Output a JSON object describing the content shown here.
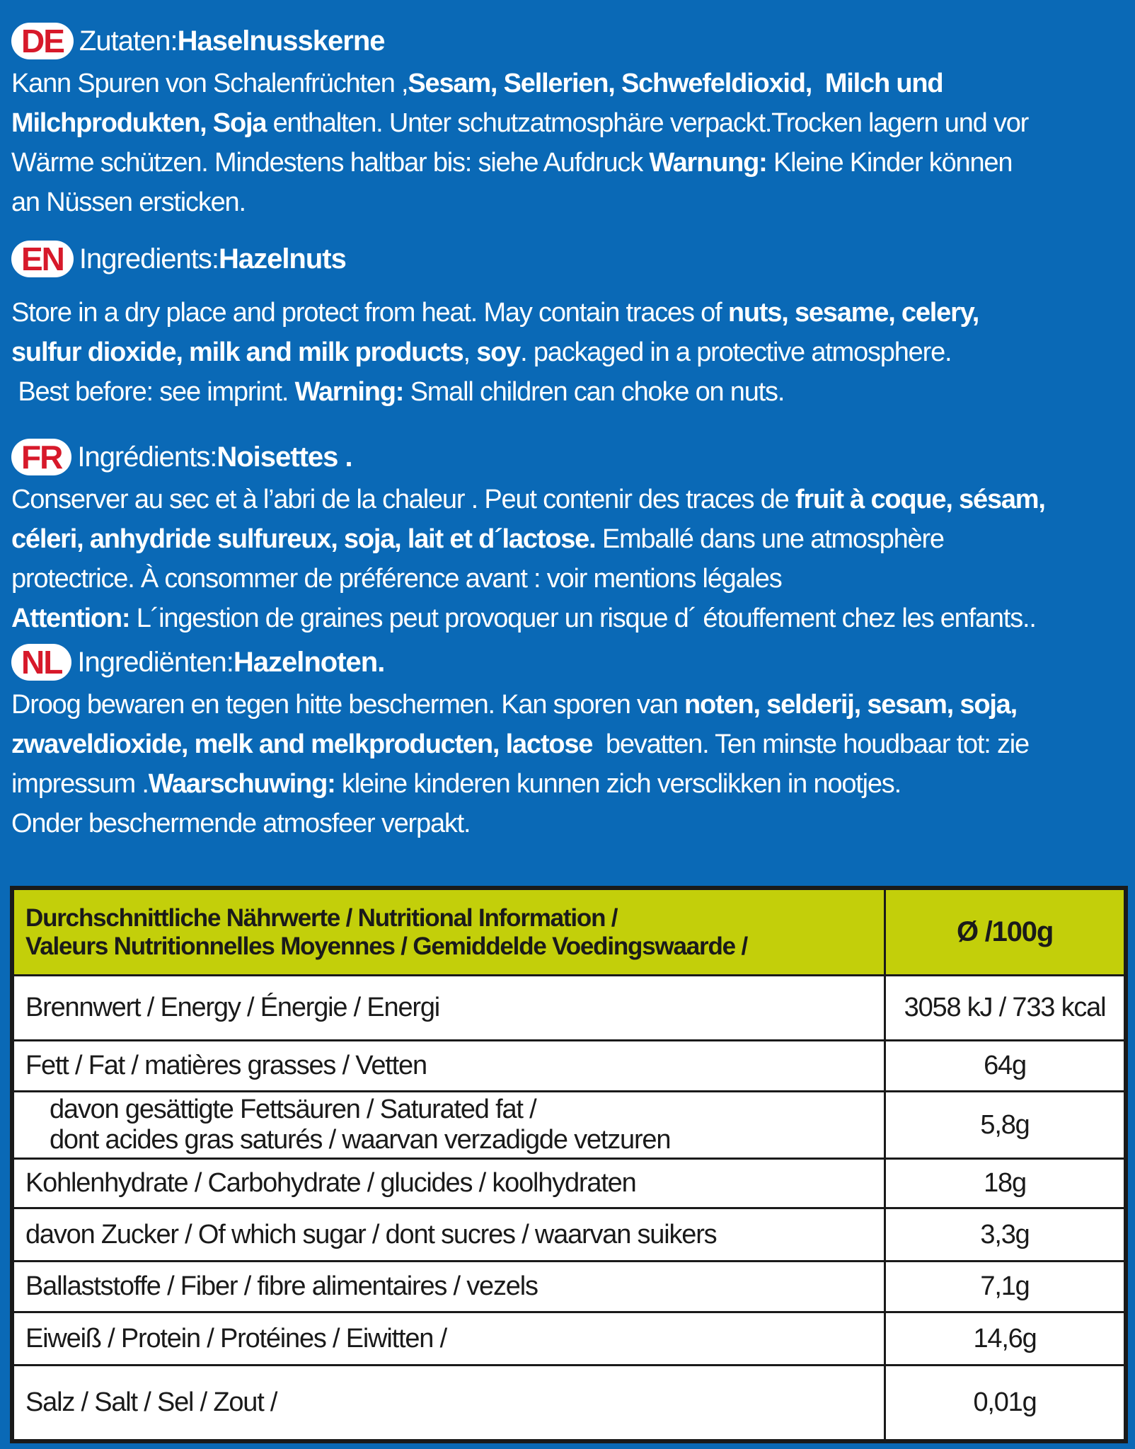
{
  "colors": {
    "background": "#0a69b6",
    "badge_text": "#d7192a",
    "table_header": "#c3cf0a"
  },
  "sections": [
    {
      "lang": "DE",
      "label": "Zutaten: ",
      "name": "Haselnusskerne",
      "lines": [
        [
          {
            "t": "Kann Spuren von Schalenfrüchten ,"
          },
          {
            "t": "Sesam, Sellerien, Schwefeldioxid,  Milch und",
            "b": true
          }
        ],
        [
          {
            "t": "Milchprodukten, Soja",
            "b": true
          },
          {
            "t": " enthalten. Unter schutzatmosphäre verpackt.Trocken lagern und vor"
          }
        ],
        [
          {
            "t": "Wärme schützen. Mindestens haltbar bis: siehe Aufdruck "
          },
          {
            "t": "Warnung:",
            "b": true
          },
          {
            "t": " Kleine Kinder können"
          }
        ],
        [
          {
            "t": "an Nüssen ersticken."
          }
        ]
      ]
    },
    {
      "lang": "EN",
      "label": "Ingredients: ",
      "name": "Hazelnuts",
      "lines": [
        [
          {
            "t": "Store in a dry place and protect from heat. May contain traces of "
          },
          {
            "t": "nuts, sesame, celery,",
            "b": true
          }
        ],
        [
          {
            "t": "sulfur dioxide, milk and milk products",
            "b": true
          },
          {
            "t": ", "
          },
          {
            "t": "soy",
            "b": true
          },
          {
            "t": ". packaged in a protective atmosphere."
          }
        ],
        [
          {
            "t": " Best before: see imprint. "
          },
          {
            "t": "Warning:",
            "b": true
          },
          {
            "t": " Small children can choke on nuts."
          }
        ]
      ]
    },
    {
      "lang": "FR",
      "label": "Ingrédients: ",
      "name": "Noisettes .",
      "lines": [
        [
          {
            "t": "Conserver au sec et à l’abri de la chaleur . Peut contenir des traces de "
          },
          {
            "t": "fruit à coque, sésam,",
            "b": true
          }
        ],
        [
          {
            "t": "céleri, anhydride sulfureux, soja, lait et d´lactose.",
            "b": true
          },
          {
            "t": " Emballé dans une atmosphère"
          }
        ],
        [
          {
            "t": "protectrice. À consommer de préférence avant : voir mentions légales"
          }
        ],
        [
          {
            "t": "Attention:",
            "b": true
          },
          {
            "t": " L´ingestion de graines peut provoquer un risque d´ étouffement chez les enfants.."
          }
        ]
      ]
    },
    {
      "lang": "NL",
      "label": "Ingrediënten: ",
      "name": "Hazelnoten.",
      "lines": [
        [
          {
            "t": "Droog bewaren en tegen hitte beschermen. Kan sporen van "
          },
          {
            "t": "noten, selderij, sesam, soja,",
            "b": true
          }
        ],
        [
          {
            "t": "zwaveldioxide, melk and melkproducten, lactose",
            "b": true
          },
          {
            "t": "  bevatten. Ten minste houdbaar tot: zie"
          }
        ],
        [
          {
            "t": "impressum ."
          },
          {
            "t": "Waarschuwing:",
            "b": true
          },
          {
            "t": " kleine kinderen kunnen zich versclikken in nootjes."
          }
        ],
        [
          {
            "t": "Onder beschermende atmosfeer verpakt."
          }
        ]
      ]
    }
  ],
  "nutrition": {
    "header": [
      "Durchschnittliche Nährwerte / Nutritional Information /",
      "Valeurs Nutritionnelles Moyennes / Gemiddelde Voedingswaarde /"
    ],
    "per": "Ø /100g",
    "rows": [
      {
        "label": [
          "Brennwert / Energy / Énergie / Energi"
        ],
        "value": "3058 kJ /  733 kcal"
      },
      {
        "label": [
          "Fett / Fat / matières grasses / Vetten"
        ],
        "value": "64g"
      },
      {
        "label": [
          "davon gesättigte Fettsäuren / Saturated fat /",
          "dont acides gras saturés / waarvan verzadigde vetzuren"
        ],
        "value": "5,8g",
        "indent": true
      },
      {
        "label": [
          "Kohlenhydrate / Carbohydrate /  glucides / koolhydraten"
        ],
        "value": "18g"
      },
      {
        "label": [
          "davon Zucker / Of which sugar / dont sucres / waarvan suikers"
        ],
        "value": "3,3g"
      },
      {
        "label": [
          "Ballaststoffe / Fiber / fibre alimentaires / vezels"
        ],
        "value": "7,1g"
      },
      {
        "label": [
          "Eiweiß / Protein / Protéines / Eiwitten /"
        ],
        "value": "14,6g"
      },
      {
        "label": [
          "Salz / Salt / Sel / Zout /"
        ],
        "value": "0,01g"
      }
    ]
  }
}
